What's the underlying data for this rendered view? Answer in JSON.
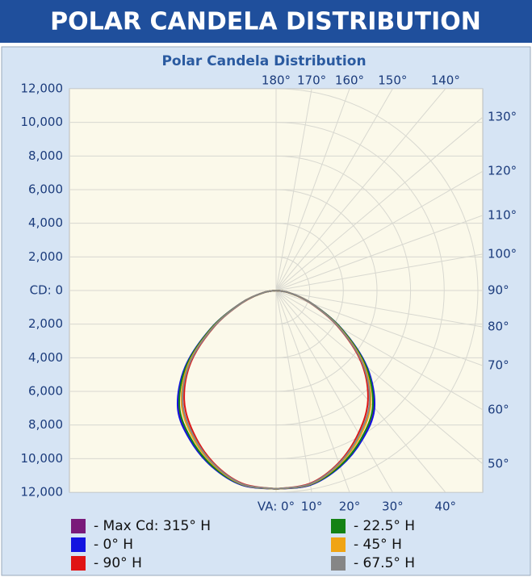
{
  "header": {
    "title": "POLAR CANDELA DISTRIBUTION"
  },
  "chart_data": {
    "type": "polar",
    "title": "Polar Candela Distribution",
    "theta": [
      0,
      10,
      20,
      30,
      40,
      50,
      60,
      70,
      80,
      90
    ],
    "rlim": [
      0,
      12000
    ],
    "rticks": [
      {
        "value": 0,
        "label": "CD: 0"
      },
      {
        "value": 2000,
        "label": "2,000"
      },
      {
        "value": 4000,
        "label": "4,000"
      },
      {
        "value": 6000,
        "label": "6,000"
      },
      {
        "value": 8000,
        "label": "8,000"
      },
      {
        "value": 10000,
        "label": "10,000"
      },
      {
        "value": 12000,
        "label": "12,000"
      }
    ],
    "angle_ticks": [
      {
        "value": 0,
        "label": "VA: 0°"
      },
      {
        "value": 10,
        "label": "10°"
      },
      {
        "value": 20,
        "label": "20°"
      },
      {
        "value": 30,
        "label": "30°"
      },
      {
        "value": 40,
        "label": "40°"
      },
      {
        "value": 50,
        "label": "50°"
      },
      {
        "value": 60,
        "label": "60°"
      },
      {
        "value": 70,
        "label": "70°"
      },
      {
        "value": 80,
        "label": "80°"
      },
      {
        "value": 90,
        "label": "90°"
      },
      {
        "value": 100,
        "label": "100°"
      },
      {
        "value": 110,
        "label": "110°"
      },
      {
        "value": 120,
        "label": "120°"
      },
      {
        "value": 130,
        "label": "130°"
      },
      {
        "value": 140,
        "label": "140°"
      },
      {
        "value": 150,
        "label": "150°"
      },
      {
        "value": 160,
        "label": "160°"
      },
      {
        "value": 170,
        "label": "170°"
      },
      {
        "value": 180,
        "label": "180°"
      }
    ],
    "grid": true,
    "series": [
      {
        "name": "- Max Cd: 315° H",
        "color": "#7a1a7a",
        "values": [
          11800,
          11740,
          11120,
          10200,
          9050,
          7000,
          4420,
          2240,
          800,
          0
        ]
      },
      {
        "name": "- 0° H",
        "color": "#1414e0",
        "values": [
          11800,
          11750,
          11150,
          10250,
          9100,
          7050,
          4450,
          2250,
          800,
          0
        ]
      },
      {
        "name": "- 90° H",
        "color": "#e01414",
        "values": [
          11800,
          11650,
          10900,
          9800,
          8500,
          6600,
          4200,
          2150,
          780,
          0
        ]
      },
      {
        "name": "- 22.5° H",
        "color": "#148214",
        "values": [
          11800,
          11720,
          11100,
          10150,
          8950,
          6950,
          4400,
          2230,
          800,
          0
        ]
      },
      {
        "name": "- 45° H",
        "color": "#f0a414",
        "values": [
          11800,
          11700,
          11000,
          10000,
          8750,
          6800,
          4300,
          2200,
          800,
          0
        ]
      },
      {
        "name": "- 67.5° H",
        "color": "#868686",
        "values": [
          11800,
          11680,
          10950,
          9900,
          8650,
          6700,
          4250,
          2180,
          800,
          0
        ]
      }
    ]
  }
}
